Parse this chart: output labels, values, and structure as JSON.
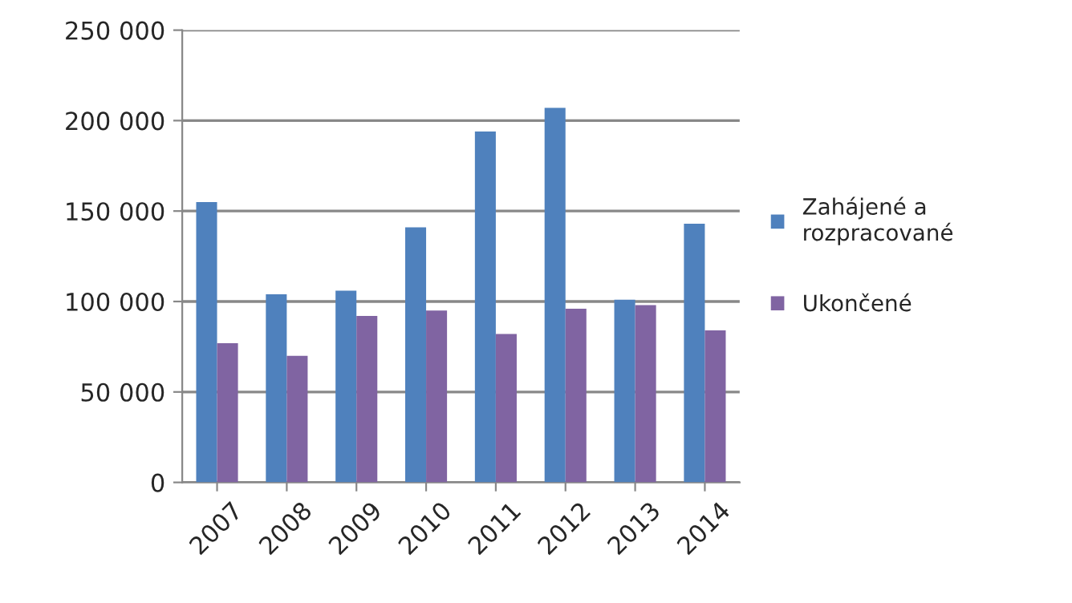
{
  "chart_data": {
    "type": "bar",
    "categories": [
      "2007",
      "2008",
      "2009",
      "2010",
      "2011",
      "2012",
      "2013",
      "2014"
    ],
    "series": [
      {
        "name": "Zahájené a rozpracované",
        "color": "#4f81bd",
        "values": [
          155000,
          104000,
          106000,
          141000,
          194000,
          207000,
          101000,
          143000
        ]
      },
      {
        "name": "Ukončené",
        "color": "#8064a2",
        "values": [
          77000,
          70000,
          92000,
          95000,
          82000,
          96000,
          98000,
          84000
        ]
      }
    ],
    "ylim": [
      0,
      250000
    ],
    "yticks": [
      {
        "value": 0,
        "label": "0"
      },
      {
        "value": 50000,
        "label": "50 000"
      },
      {
        "value": 100000,
        "label": "100 000"
      },
      {
        "value": 150000,
        "label": "150 000"
      },
      {
        "value": 200000,
        "label": "200 000"
      },
      {
        "value": 250000,
        "label": "250 000"
      }
    ],
    "grid": "y",
    "legend": "right"
  }
}
